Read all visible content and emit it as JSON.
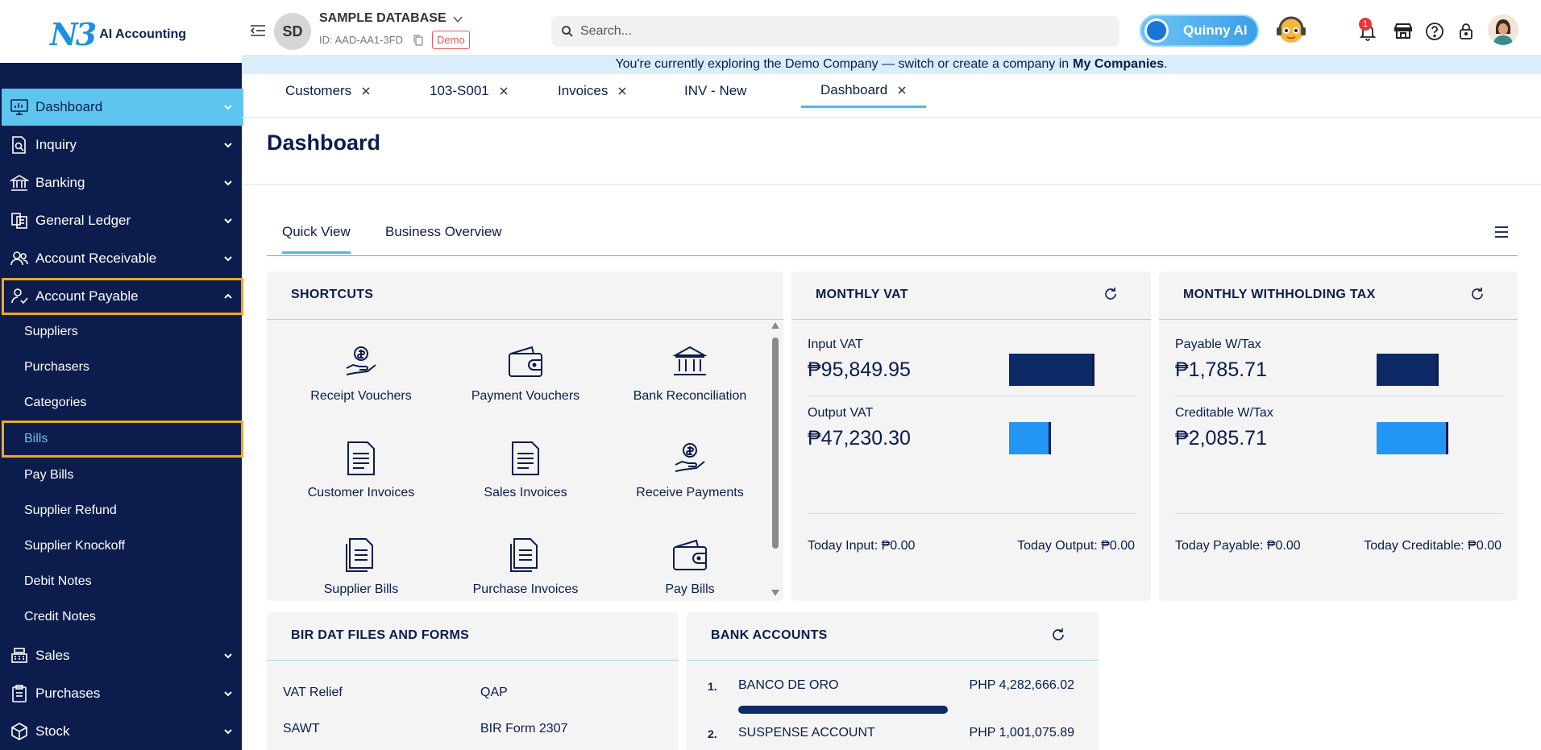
{
  "header": {
    "logo_mark": "N3",
    "logo_text": "AI Accounting",
    "db_initials": "SD",
    "db_name": "SAMPLE DATABASE",
    "db_id": "ID: AAD-AA1-3FD",
    "demo_badge": "Demo",
    "search_placeholder": "Search...",
    "assistant_label": "Quinny AI",
    "notification_count": "1"
  },
  "banner": {
    "text": "You're currently exploring the Demo Company — switch or create a company in",
    "link": "My Companies",
    "suffix": "."
  },
  "sidebar": {
    "items": [
      {
        "label": "Dashboard",
        "icon": "monitor-chart-icon",
        "state": "active"
      },
      {
        "label": "Inquiry",
        "icon": "document-search-icon"
      },
      {
        "label": "Banking",
        "icon": "bank-icon"
      },
      {
        "label": "General Ledger",
        "icon": "ledger-icon"
      },
      {
        "label": "Account Receivable",
        "icon": "users-icon"
      },
      {
        "label": "Account Payable",
        "icon": "user-check-icon",
        "state": "expanded"
      },
      {
        "label": "Sales",
        "icon": "register-icon"
      },
      {
        "label": "Purchases",
        "icon": "clipboard-icon"
      },
      {
        "label": "Stock",
        "icon": "box-icon"
      }
    ],
    "payable_sub": [
      "Suppliers",
      "Purchasers",
      "Categories",
      "Bills",
      "Pay Bills",
      "Supplier Refund",
      "Supplier Knockoff",
      "Debit Notes",
      "Credit Notes"
    ],
    "selected_sub": "Bills"
  },
  "tabs": [
    {
      "label": "Customers",
      "closable": true
    },
    {
      "label": "103-S001",
      "closable": true
    },
    {
      "label": "Invoices",
      "closable": true
    },
    {
      "label": "INV - New",
      "closable": false
    },
    {
      "label": "Dashboard",
      "closable": true,
      "active": true
    }
  ],
  "page": {
    "title": "Dashboard",
    "subtabs": [
      "Quick View",
      "Business Overview"
    ],
    "active_subtab": "Quick View"
  },
  "shortcuts": {
    "title": "SHORTCUTS",
    "items": [
      {
        "label": "Receipt Vouchers",
        "icon": "hand-coin-icon"
      },
      {
        "label": "Payment Vouchers",
        "icon": "wallet-icon"
      },
      {
        "label": "Bank Reconciliation",
        "icon": "bank-icon"
      },
      {
        "label": "Customer Invoices",
        "icon": "document-icon"
      },
      {
        "label": "Sales Invoices",
        "icon": "document-icon"
      },
      {
        "label": "Receive Payments",
        "icon": "hand-coin-icon"
      },
      {
        "label": "Supplier Bills",
        "icon": "documents-icon"
      },
      {
        "label": "Purchase Invoices",
        "icon": "documents-icon"
      },
      {
        "label": "Pay Bills",
        "icon": "wallet-icon"
      }
    ]
  },
  "monthly_vat": {
    "title": "MONTHLY VAT",
    "input_label": "Input VAT",
    "input_value": "₱95,849.95",
    "output_label": "Output VAT",
    "output_value": "₱47,230.30",
    "input_fraction": 1.0,
    "output_fraction": 0.49,
    "today_input": "Today Input: ₱0.00",
    "today_output": "Today Output: ₱0.00"
  },
  "monthly_wtax": {
    "title": "MONTHLY WITHHOLDING TAX",
    "payable_label": "Payable W/Tax",
    "payable_value": "₱1,785.71",
    "creditable_label": "Creditable W/Tax",
    "creditable_value": "₱2,085.71",
    "payable_fraction": 0.86,
    "creditable_fraction": 1.0,
    "today_payable": "Today Payable: ₱0.00",
    "today_creditable": "Today Creditable: ₱0.00"
  },
  "bir": {
    "title": "BIR DAT FILES AND FORMS",
    "links": [
      "VAT Relief",
      "QAP",
      "SAWT",
      "BIR Form 2307"
    ]
  },
  "bank_accounts": {
    "title": "BANK ACCOUNTS",
    "rows": [
      {
        "num": "1.",
        "name": "BANCO DE ORO",
        "amount": "PHP 4,282,666.02"
      },
      {
        "num": "2.",
        "name": "SUSPENSE ACCOUNT",
        "amount": "PHP 1,001,075.89"
      }
    ]
  },
  "colors": {
    "navy": "#0b1c4d",
    "accent": "#5ec6ee",
    "bar_dark": "#0d2a66",
    "bar_light": "#2196f3",
    "highlight": "#f5a623"
  }
}
